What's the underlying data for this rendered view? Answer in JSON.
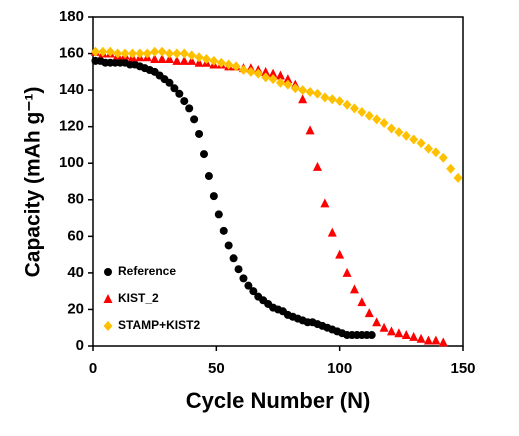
{
  "chart_data": {
    "type": "scatter",
    "xlabel": "Cycle Number (N)",
    "ylabel": "Capacity (mAh g⁻¹)",
    "xlim": [
      0,
      150
    ],
    "xticks": [
      0,
      50,
      100,
      150
    ],
    "ylim": [
      0,
      180
    ],
    "yticks": [
      0,
      20,
      40,
      60,
      80,
      100,
      120,
      140,
      160,
      180
    ],
    "legend": "lower-left",
    "series": [
      {
        "name": "Reference",
        "color": "#000000",
        "marker": "circle",
        "x": [
          1,
          3,
          5,
          7,
          9,
          11,
          13,
          15,
          17,
          19,
          21,
          23,
          25,
          27,
          29,
          31,
          33,
          35,
          37,
          39,
          41,
          43,
          45,
          47,
          49,
          51,
          53,
          55,
          57,
          59,
          61,
          63,
          65,
          67,
          69,
          71,
          73,
          75,
          77,
          79,
          81,
          83,
          85,
          87,
          89,
          91,
          93,
          95,
          97,
          99,
          101,
          103,
          105,
          107,
          109,
          111,
          113
        ],
        "values": [
          156,
          156,
          155,
          155,
          155,
          155,
          155,
          154,
          154,
          153,
          152,
          151,
          150,
          148,
          146,
          144,
          141,
          138,
          134,
          130,
          124,
          116,
          105,
          93,
          82,
          72,
          63,
          55,
          48,
          42,
          37,
          33,
          30,
          27,
          25,
          23,
          21,
          20,
          19,
          17,
          16,
          15,
          14,
          13,
          13,
          12,
          11,
          10,
          9,
          8,
          7,
          6,
          6,
          6,
          6,
          6,
          6
        ]
      },
      {
        "name": "KIST_2",
        "color": "#ff0000",
        "marker": "triangle",
        "x": [
          1,
          4,
          7,
          10,
          13,
          16,
          19,
          22,
          25,
          28,
          31,
          34,
          37,
          40,
          43,
          46,
          49,
          52,
          55,
          58,
          61,
          64,
          67,
          70,
          73,
          76,
          79,
          82,
          85,
          88,
          91,
          94,
          97,
          100,
          103,
          106,
          109,
          112,
          115,
          118,
          121,
          124,
          127,
          130,
          133,
          136,
          139,
          142
        ],
        "values": [
          161,
          160,
          160,
          159,
          159,
          158,
          158,
          158,
          157,
          157,
          157,
          156,
          156,
          156,
          155,
          155,
          154,
          154,
          153,
          153,
          152,
          152,
          151,
          150,
          149,
          148,
          146,
          143,
          135,
          118,
          98,
          78,
          62,
          50,
          40,
          31,
          24,
          18,
          13,
          10,
          8,
          7,
          6,
          5,
          4,
          3,
          3,
          2
        ]
      },
      {
        "name": "STAMP+KIST2",
        "color": "#ffc000",
        "marker": "diamond",
        "x": [
          1,
          4,
          7,
          10,
          13,
          16,
          19,
          22,
          25,
          28,
          31,
          34,
          37,
          40,
          43,
          46,
          49,
          52,
          55,
          58,
          61,
          64,
          67,
          70,
          73,
          76,
          79,
          82,
          85,
          88,
          91,
          94,
          97,
          100,
          103,
          106,
          109,
          112,
          115,
          118,
          121,
          124,
          127,
          130,
          133,
          136,
          139,
          142,
          145,
          148
        ],
        "values": [
          161,
          161,
          161,
          160,
          160,
          160,
          160,
          160,
          161,
          161,
          160,
          160,
          160,
          159,
          158,
          157,
          156,
          155,
          154,
          153,
          151,
          150,
          149,
          147,
          146,
          144,
          143,
          141,
          140,
          139,
          138,
          136,
          135,
          134,
          132,
          130,
          128,
          126,
          124,
          122,
          119,
          117,
          115,
          113,
          111,
          108,
          106,
          103,
          97,
          92
        ]
      }
    ]
  }
}
